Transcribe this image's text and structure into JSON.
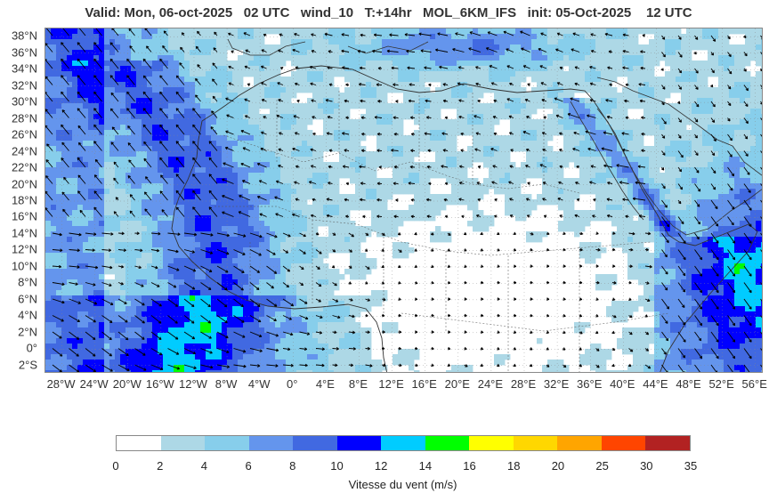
{
  "title": "Valid: Mon, 06-oct-2025   02 UTC   wind_10   T:+14hr   MOL_6KM_IFS   init: 05-Oct-2025    12 UTC",
  "map": {
    "lat_labels": [
      "38°N",
      "36°N",
      "34°N",
      "32°N",
      "30°N",
      "28°N",
      "26°N",
      "24°N",
      "22°N",
      "20°N",
      "18°N",
      "16°N",
      "14°N",
      "12°N",
      "10°N",
      "8°N",
      "6°N",
      "4°N",
      "2°N",
      "0°",
      "2°S"
    ],
    "lat_values": [
      38,
      36,
      34,
      32,
      30,
      28,
      26,
      24,
      22,
      20,
      18,
      16,
      14,
      12,
      10,
      8,
      6,
      4,
      2,
      0,
      -2
    ],
    "lon_labels": [
      "28°W",
      "24°W",
      "20°W",
      "16°W",
      "12°W",
      "8°W",
      "4°W",
      "0°",
      "4°E",
      "8°E",
      "12°E",
      "16°E",
      "20°E",
      "24°E",
      "28°E",
      "32°E",
      "36°E",
      "40°E",
      "44°E",
      "48°E",
      "52°E",
      "56°E"
    ],
    "lon_values": [
      -28,
      -24,
      -20,
      -16,
      -12,
      -8,
      -4,
      0,
      4,
      8,
      12,
      16,
      20,
      24,
      28,
      32,
      36,
      40,
      44,
      48,
      52,
      56
    ],
    "lat_range": [
      -3,
      39
    ],
    "lon_range": [
      -30,
      57
    ]
  },
  "colorbar": {
    "ticks": [
      "0",
      "2",
      "4",
      "6",
      "8",
      "10",
      "12",
      "14",
      "16",
      "18",
      "20",
      "25",
      "30",
      "35"
    ],
    "colors": [
      "#ffffff",
      "#add8e6",
      "#87ceeb",
      "#6495ed",
      "#4169e1",
      "#0000ff",
      "#00ccff",
      "#00ff00",
      "#ffff00",
      "#ffd700",
      "#ffa500",
      "#ff4500",
      "#b22222"
    ],
    "label": "Vitesse du vent (m/s)"
  }
}
